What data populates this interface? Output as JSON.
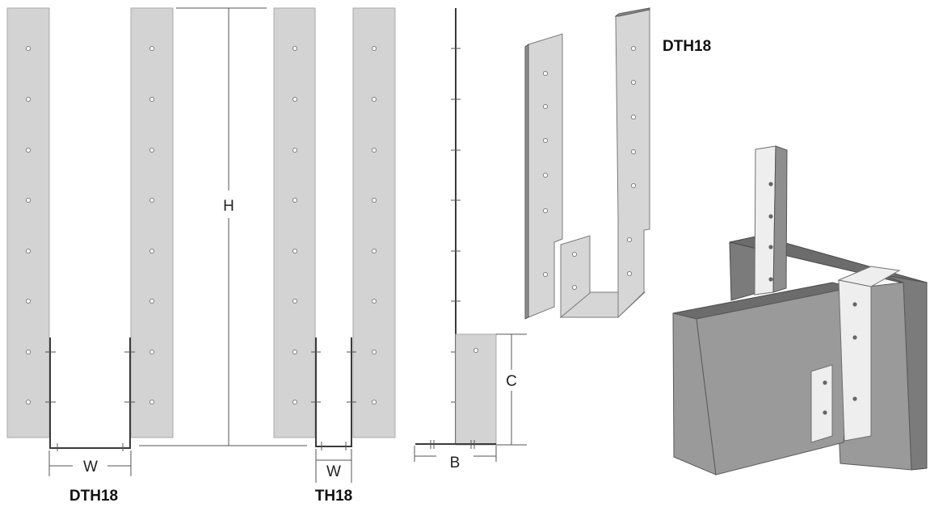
{
  "labels": {
    "height": "H",
    "width_dth18": "W",
    "width_th18": "W",
    "depth": "B",
    "clearance": "C",
    "caption_left": "DTH18",
    "caption_middle": "TH18",
    "caption_iso": "DTH18"
  },
  "colors": {
    "plate": "#d3d3d3",
    "timber_light": "#9a9a9a",
    "timber_dark": "#6c6c6c"
  }
}
